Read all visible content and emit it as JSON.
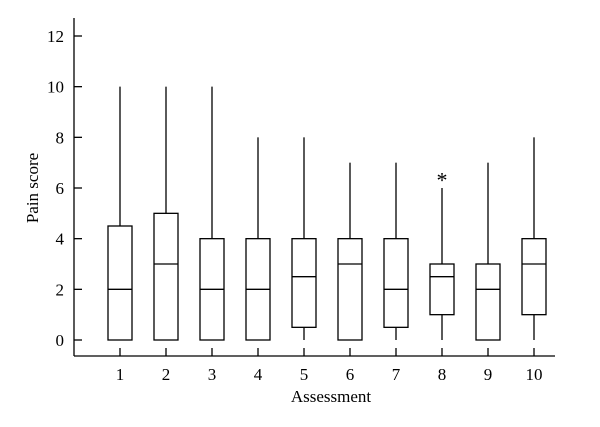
{
  "chart_data": {
    "type": "boxplot",
    "xlabel": "Assessment",
    "ylabel": "Pain score",
    "ylim": [
      0,
      12
    ],
    "yticks": [
      0,
      2,
      4,
      6,
      8,
      10,
      12
    ],
    "grid": false,
    "categories": [
      "1",
      "2",
      "3",
      "4",
      "5",
      "6",
      "7",
      "8",
      "9",
      "10"
    ],
    "boxes": [
      {
        "category": "1",
        "min": 0,
        "q1": 0,
        "median": 2,
        "q3": 4.5,
        "max": 10
      },
      {
        "category": "2",
        "min": 0,
        "q1": 0,
        "median": 3,
        "q3": 5,
        "max": 10
      },
      {
        "category": "3",
        "min": 0,
        "q1": 0,
        "median": 2,
        "q3": 4,
        "max": 10
      },
      {
        "category": "4",
        "min": 0,
        "q1": 0,
        "median": 2,
        "q3": 4,
        "max": 8
      },
      {
        "category": "5",
        "min": 0,
        "q1": 0.5,
        "median": 2.5,
        "q3": 4,
        "max": 8
      },
      {
        "category": "6",
        "min": 0,
        "q1": 0,
        "median": 3,
        "q3": 4,
        "max": 7
      },
      {
        "category": "7",
        "min": 0,
        "q1": 0.5,
        "median": 2,
        "q3": 4,
        "max": 7
      },
      {
        "category": "8",
        "min": 0,
        "q1": 1,
        "median": 2.5,
        "q3": 3,
        "max": 6
      },
      {
        "category": "9",
        "min": 0,
        "q1": 0,
        "median": 2,
        "q3": 3,
        "max": 7
      },
      {
        "category": "10",
        "min": 0,
        "q1": 1,
        "median": 3,
        "q3": 4,
        "max": 8
      }
    ],
    "outliers": [
      {
        "category": "8",
        "y": 6.5,
        "symbol": "*"
      }
    ]
  }
}
